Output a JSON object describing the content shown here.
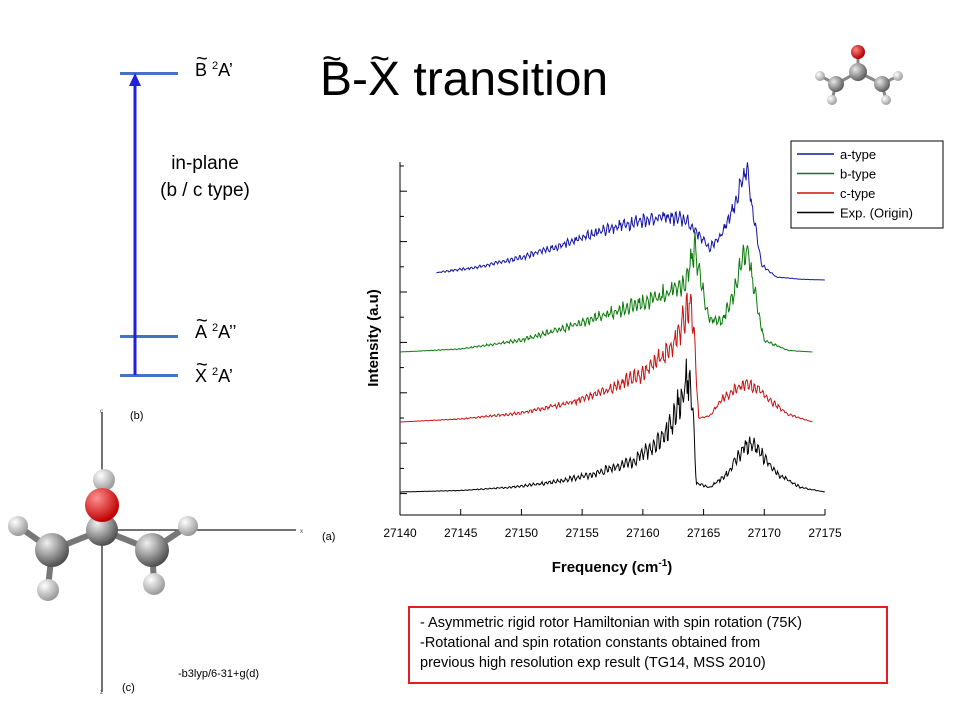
{
  "slide": {
    "title_b": "B",
    "title_mid": "-",
    "title_x": "X",
    "title_rest": " transition",
    "tilde": "~"
  },
  "energy_diagram": {
    "level_B": {
      "symbol": "B",
      "sup": "2",
      "term": "A’"
    },
    "level_A": {
      "symbol": "A",
      "sup": "2",
      "term": "A’’"
    },
    "level_X": {
      "symbol": "X",
      "sup": "2",
      "term": "A’"
    },
    "transition_line1": "in-plane",
    "transition_line2": "(b / c type)",
    "colors": {
      "levels": "#4472c4",
      "arrow": "#1f1fdd"
    }
  },
  "molecule": {
    "label_b": "(b)",
    "label_a": "(a)",
    "label_c": "(c)",
    "method": "-b3lyp/6-31+g(d)",
    "axis_labels": [
      "c",
      "x",
      "z"
    ]
  },
  "note": {
    "lines": [
      "- Asymmetric rigid rotor Hamiltonian with spin rotation (75K)",
      "-Rotational  and spin rotation constants obtained from",
      "previous high resolution exp result (TG14, MSS 2010)"
    ],
    "border_color": "#e02020"
  },
  "chart_data": {
    "type": "line",
    "title": "",
    "xlabel": "Frequency (cm",
    "xlabel_sup": "-1",
    "xlabel_end": ")",
    "ylabel": "Intensity (a.u)",
    "xlim": [
      27140,
      27175
    ],
    "x_ticks": [
      27140,
      27145,
      27150,
      27155,
      27160,
      27165,
      27170,
      27175
    ],
    "y_ticks_shown": false,
    "legend_position": "top-right",
    "legend_order": [
      "a-type",
      "b-type",
      "c-type",
      "Exp. (Origin)"
    ],
    "series": [
      {
        "name": "a-type",
        "color": "#1515a0",
        "offset": 3,
        "x": [
          27143,
          27146,
          27150,
          27154,
          27157,
          27160,
          27162,
          27163.5,
          27164.5,
          27165.5,
          27166.5,
          27167.5,
          27168.2,
          27168.6,
          27169.0,
          27169.8,
          27171,
          27173,
          27175
        ],
        "y": [
          0.1,
          0.16,
          0.3,
          0.5,
          0.68,
          0.8,
          0.84,
          0.8,
          0.63,
          0.42,
          0.62,
          0.98,
          1.32,
          1.45,
          0.95,
          0.2,
          0.04,
          0.01,
          0.0
        ],
        "noise": 0.14
      },
      {
        "name": "b-type",
        "color": "#0b7a0b",
        "offset": 2,
        "x": [
          27140,
          27145,
          27150,
          27154,
          27157,
          27160,
          27162,
          27163.5,
          27164.3,
          27164.8,
          27165.4,
          27166.5,
          27167.5,
          27168.3,
          27168.7,
          27169.2,
          27170,
          27172,
          27174
        ],
        "y": [
          0.0,
          0.04,
          0.16,
          0.34,
          0.5,
          0.66,
          0.78,
          0.92,
          1.4,
          0.92,
          0.46,
          0.4,
          0.8,
          1.25,
          1.3,
          0.8,
          0.15,
          0.02,
          0.0
        ],
        "noise": 0.2
      },
      {
        "name": "c-type",
        "color": "#cc1010",
        "offset": 1,
        "x": [
          27140,
          27145,
          27150,
          27154,
          27157,
          27160,
          27162,
          27163.2,
          27163.8,
          27164.1,
          27164.6,
          27165.5,
          27166.5,
          27167.5,
          27168.5,
          27169.5,
          27170.5,
          27172,
          27174
        ],
        "y": [
          0.0,
          0.04,
          0.12,
          0.26,
          0.42,
          0.65,
          0.92,
          1.25,
          1.62,
          1.45,
          0.05,
          0.08,
          0.3,
          0.42,
          0.52,
          0.44,
          0.28,
          0.1,
          0.0
        ],
        "noise": 0.2
      },
      {
        "name": "Exp. (Origin)",
        "color": "#000000",
        "offset": 0,
        "x": [
          27140,
          27145,
          27149,
          27153,
          27156,
          27159,
          27161,
          27162.5,
          27163.3,
          27163.7,
          27164.1,
          27164.4,
          27165.5,
          27167,
          27168,
          27168.8,
          27169.5,
          27171,
          27173,
          27175
        ],
        "y": [
          0.0,
          0.02,
          0.06,
          0.14,
          0.24,
          0.4,
          0.62,
          0.95,
          1.32,
          1.55,
          1.1,
          0.12,
          0.06,
          0.25,
          0.52,
          0.65,
          0.55,
          0.25,
          0.06,
          0.0
        ],
        "noise": 0.24
      }
    ]
  }
}
